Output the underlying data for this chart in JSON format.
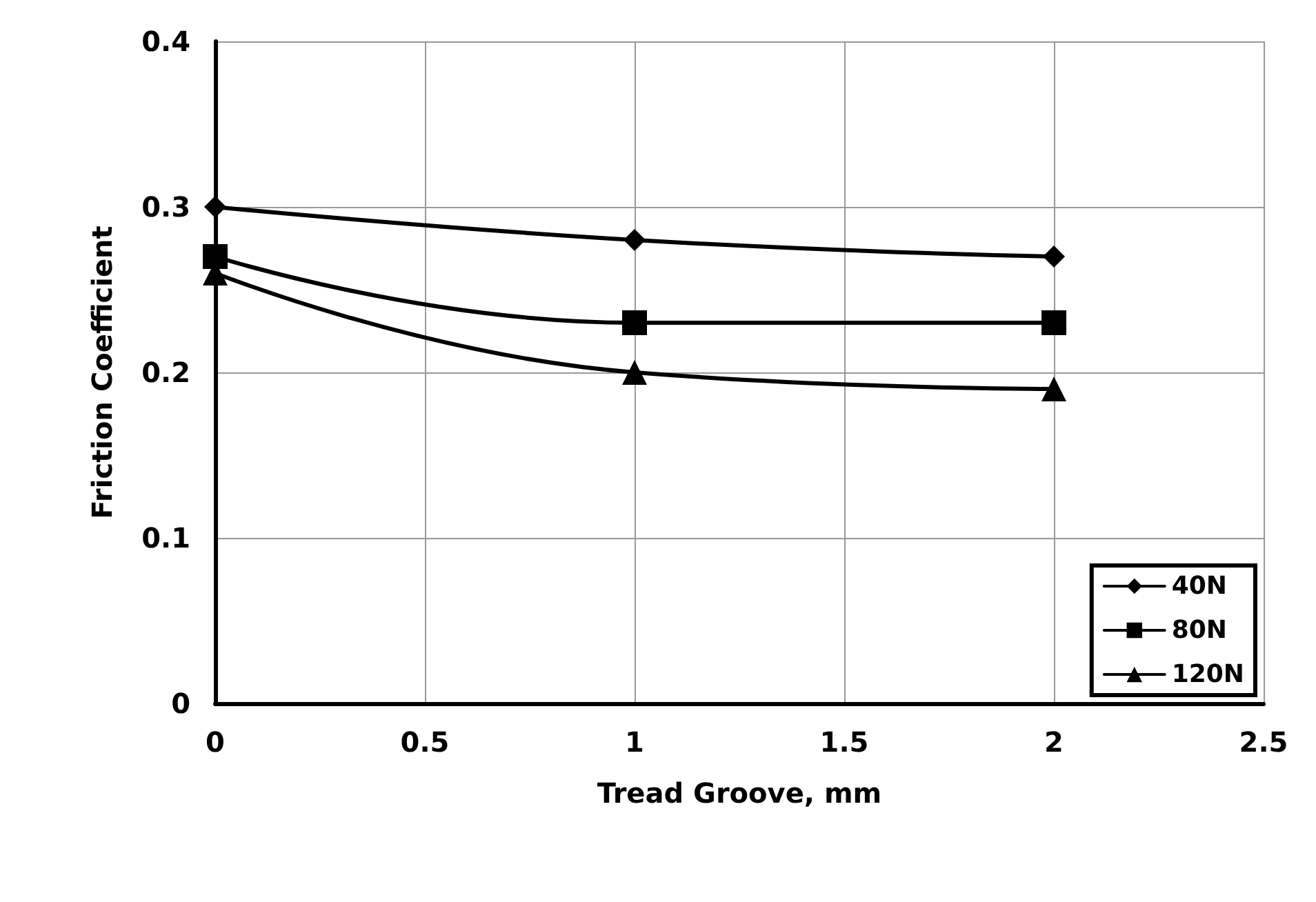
{
  "chart_data": {
    "type": "line",
    "xlabel": "Tread Groove, mm",
    "ylabel": "Friction Coefficient",
    "x": [
      0,
      1,
      2
    ],
    "series": [
      {
        "name": "40N",
        "color": "#000000",
        "marker": "diamond",
        "values": [
          0.3,
          0.28,
          0.27
        ]
      },
      {
        "name": "80N",
        "color": "#000000",
        "marker": "square",
        "values": [
          0.27,
          0.23,
          0.23
        ]
      },
      {
        "name": "120N",
        "color": "#000000",
        "marker": "triangle",
        "values": [
          0.26,
          0.2,
          0.19
        ]
      }
    ],
    "xlim": [
      0,
      2.5
    ],
    "xticks": [
      0,
      0.5,
      1,
      1.5,
      2,
      2.5
    ],
    "ylim": [
      0,
      0.4
    ],
    "yticks": [
      0,
      0.1,
      0.2,
      0.3,
      0.4
    ],
    "grid": true,
    "legend": "bottom right",
    "line_style": "solid"
  }
}
